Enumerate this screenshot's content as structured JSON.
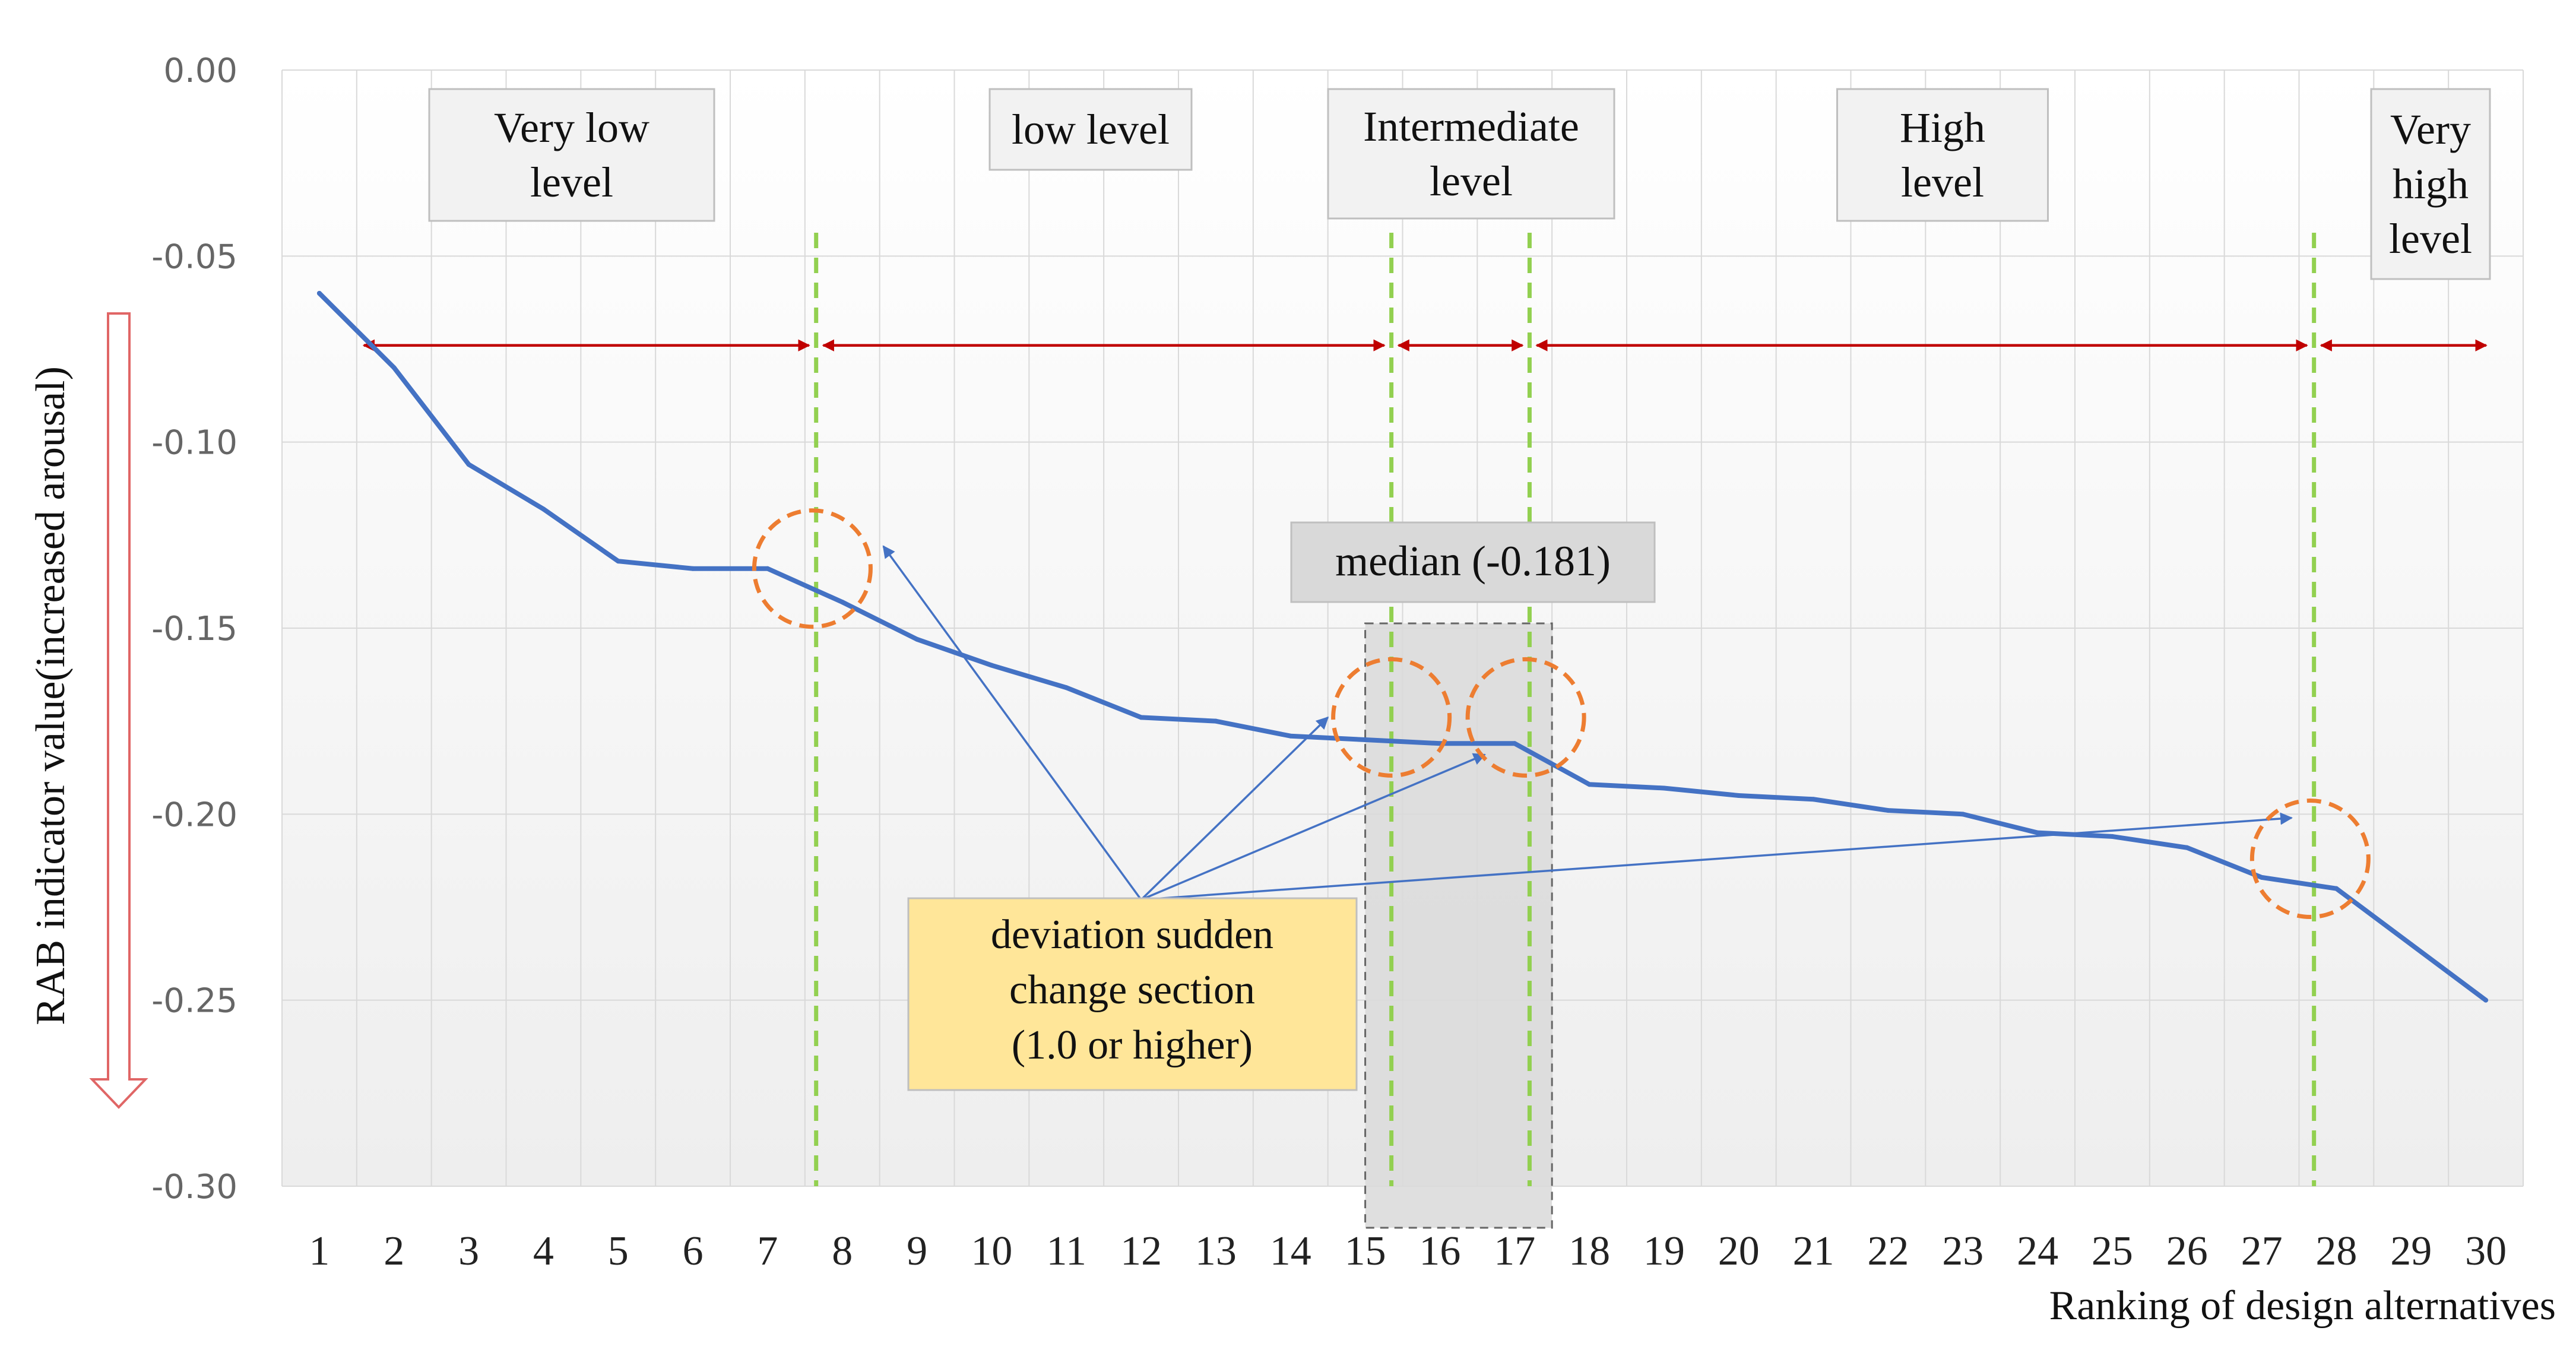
{
  "chart_data": {
    "type": "line",
    "x": [
      1,
      2,
      3,
      4,
      5,
      6,
      7,
      8,
      9,
      10,
      11,
      12,
      13,
      14,
      15,
      16,
      17,
      18,
      19,
      20,
      21,
      22,
      23,
      24,
      25,
      26,
      27,
      28,
      29,
      30
    ],
    "values": [
      -0.06,
      -0.08,
      -0.106,
      -0.118,
      -0.132,
      -0.134,
      -0.134,
      -0.143,
      -0.153,
      -0.16,
      -0.166,
      -0.174,
      -0.175,
      -0.179,
      -0.18,
      -0.181,
      -0.181,
      -0.192,
      -0.193,
      -0.195,
      -0.196,
      -0.199,
      -0.2,
      -0.205,
      -0.206,
      -0.209,
      -0.217,
      -0.22,
      -0.235,
      -0.25
    ],
    "ylim": [
      -0.3,
      0.0
    ],
    "y_ticks": [
      "0.00",
      "-0.05",
      "-0.10",
      "-0.15",
      "-0.20",
      "-0.25",
      "-0.30"
    ],
    "x_ticks": [
      "1",
      "2",
      "3",
      "4",
      "5",
      "6",
      "7",
      "8",
      "9",
      "10",
      "11",
      "12",
      "13",
      "14",
      "15",
      "16",
      "17",
      "18",
      "19",
      "20",
      "21",
      "22",
      "23",
      "24",
      "25",
      "26",
      "27",
      "28",
      "29",
      "30"
    ],
    "ylabel": "RAB indicator value(increased arousal)",
    "xlabel": "Ranking of design alternatives",
    "level_labels": [
      {
        "lines": [
          "Very low",
          "level"
        ]
      },
      {
        "lines": [
          "low level"
        ]
      },
      {
        "lines": [
          "Intermediate",
          "level"
        ]
      },
      {
        "lines": [
          "High",
          "level"
        ]
      },
      {
        "lines": [
          "Very",
          "high",
          "level"
        ]
      }
    ],
    "boundaries": [
      7.65,
      15.35,
      17.2,
      27.7
    ],
    "median": {
      "label": "median (-0.181)",
      "value": -0.181,
      "x_range": [
        15.0,
        17.5
      ]
    },
    "callout": {
      "lines": [
        "deviation sudden",
        "change section",
        "(1.0 or higher)"
      ]
    },
    "callout_source": {
      "x": 12,
      "y": -0.223
    },
    "arrow_targets": [
      {
        "x": 8.55,
        "y": -0.128
      },
      {
        "x": 14.5,
        "y": -0.174
      },
      {
        "x": 16.6,
        "y": -0.184
      },
      {
        "x": 27.4,
        "y": -0.201
      }
    ],
    "highlight_circles": [
      {
        "x": 7.6,
        "y": -0.134
      },
      {
        "x": 15.35,
        "y": -0.174
      },
      {
        "x": 17.15,
        "y": -0.174
      },
      {
        "x": 27.65,
        "y": -0.212
      }
    ],
    "range_arrow_y": -0.074,
    "colors": {
      "line": "#4472C4",
      "boundary": "#92D050",
      "range_arrow": "#C00000",
      "circle": "#ED7D31",
      "grid": "#D9D9D9",
      "median_box": "#D9D9D9",
      "callout_fill": "#FFE699",
      "label_box_fill": "#F2F2F2",
      "down_arrow": "#E06666"
    }
  }
}
